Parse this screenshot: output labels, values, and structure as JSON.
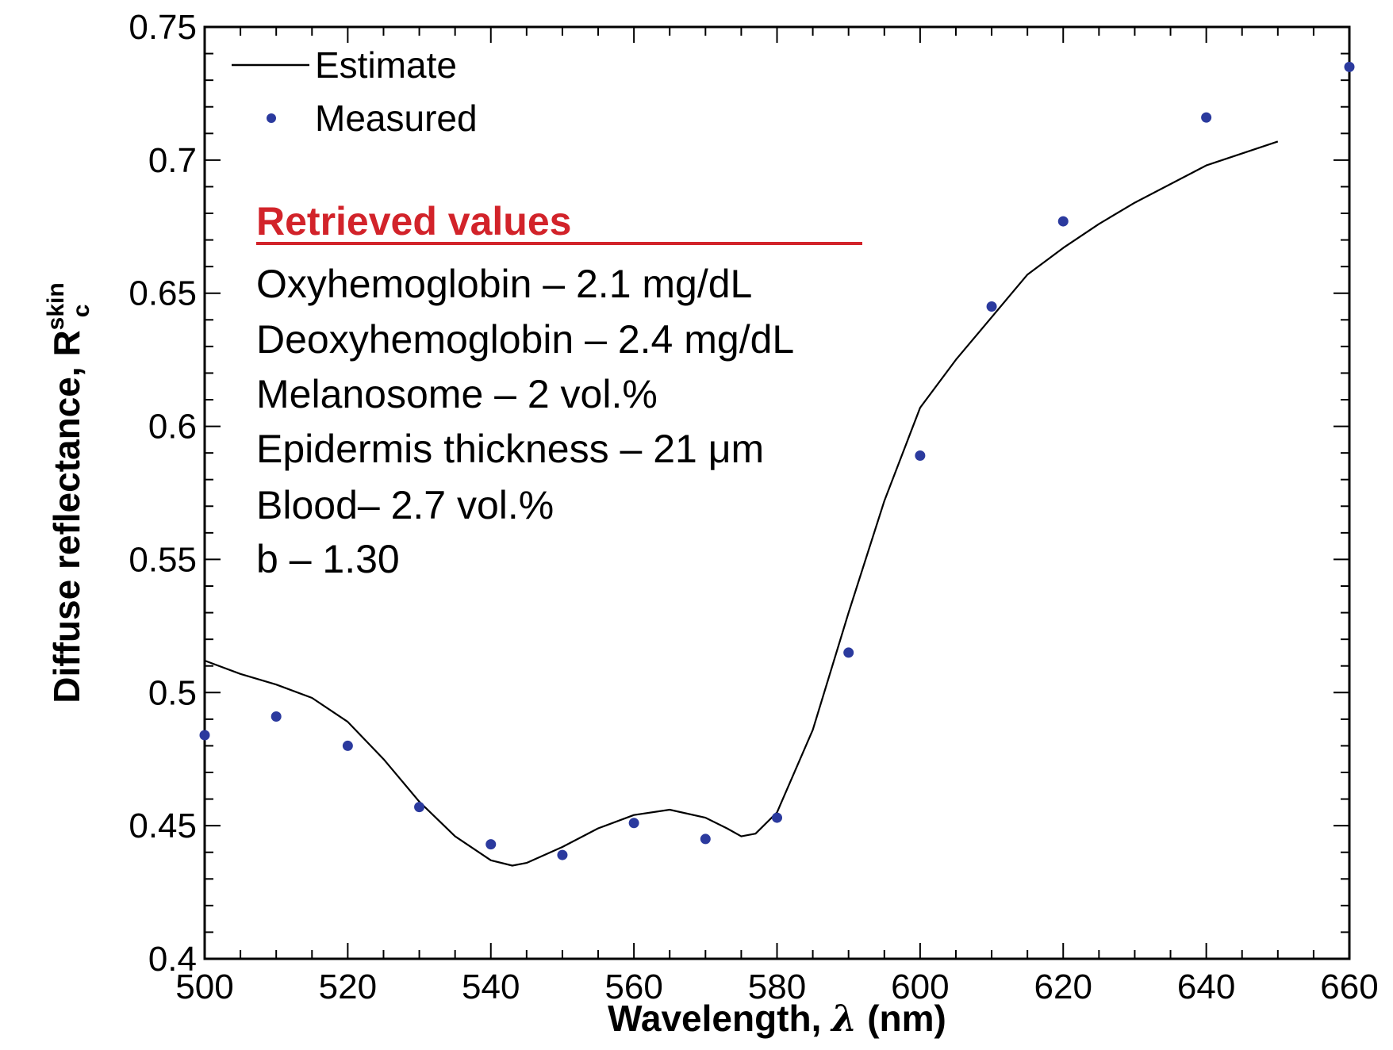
{
  "chart_data": {
    "type": "line",
    "xlabel_main": "Wavelength, ",
    "xlabel_symbol": "λ",
    "xlabel_unit": " (nm)",
    "ylabel_main": "Diffuse reflectance, R",
    "ylabel_sup": "skin",
    "ylabel_sub": "c",
    "xlim": [
      500,
      660
    ],
    "ylim": [
      0.4,
      0.75
    ],
    "x_ticks": [
      "500",
      "520",
      "540",
      "560",
      "580",
      "600",
      "620",
      "640",
      "660"
    ],
    "y_ticks": [
      "0.4",
      "0.45",
      "0.5",
      "0.55",
      "0.6",
      "0.65",
      "0.7",
      "0.75"
    ],
    "legend": {
      "position": "top-left",
      "items": [
        "Estimate",
        "Measured"
      ]
    },
    "series": [
      {
        "name": "Estimate",
        "kind": "line",
        "color": "#000000",
        "x": [
          500,
          505,
          510,
          515,
          520,
          525,
          530,
          535,
          540,
          543,
          545,
          550,
          555,
          560,
          565,
          570,
          573,
          575,
          577,
          580,
          585,
          590,
          595,
          600,
          605,
          610,
          615,
          620,
          625,
          630,
          640,
          650
        ],
        "y": [
          0.512,
          0.507,
          0.503,
          0.498,
          0.489,
          0.475,
          0.459,
          0.446,
          0.437,
          0.435,
          0.436,
          0.442,
          0.449,
          0.454,
          0.456,
          0.453,
          0.449,
          0.446,
          0.447,
          0.455,
          0.486,
          0.53,
          0.572,
          0.607,
          0.625,
          0.641,
          0.657,
          0.667,
          0.676,
          0.684,
          0.698,
          0.707
        ]
      },
      {
        "name": "Measured",
        "kind": "scatter",
        "color": "#2b3a9e",
        "x": [
          500,
          510,
          520,
          530,
          540,
          550,
          560,
          570,
          580,
          590,
          600,
          610,
          620,
          640,
          660
        ],
        "y": [
          0.484,
          0.491,
          0.48,
          0.457,
          0.443,
          0.439,
          0.451,
          0.445,
          0.453,
          0.515,
          0.589,
          0.645,
          0.677,
          0.716,
          0.735
        ]
      }
    ],
    "annotation": {
      "heading": "Retrieved values",
      "lines": [
        "Oxyhemoglobin – 2.1 mg/dL",
        "Deoxyhemoglobin – 2.4 mg/dL",
        "Melanosome – 2 vol.%",
        "Epidermis thickness – 21 μm",
        "Blood– 2.7 vol.%",
        "b – 1.30"
      ],
      "heading_color": "#d2232a"
    }
  }
}
